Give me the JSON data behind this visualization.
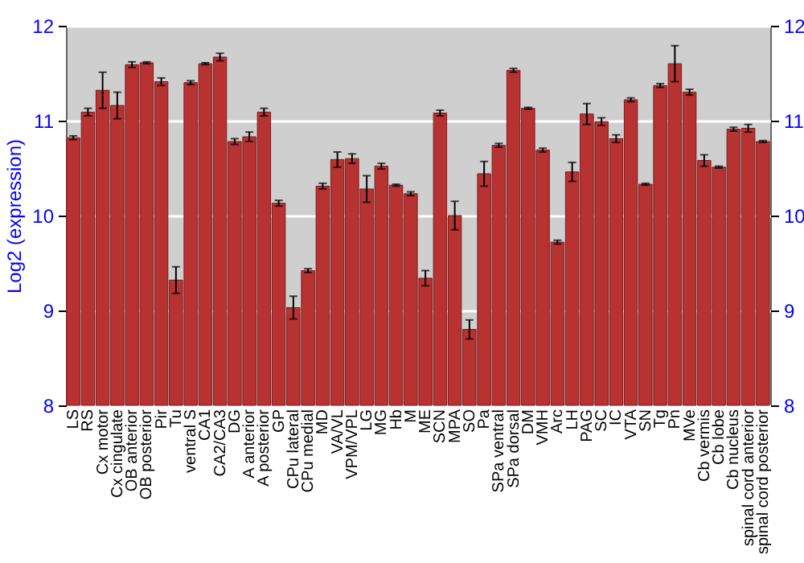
{
  "chart_data": {
    "type": "bar",
    "ylabel": "Log2 (expression)",
    "categories": [
      "LS",
      "RS",
      "Cx motor",
      "Cx cingulate",
      "OB anterior",
      "OB posterior",
      "Pir",
      "Tu",
      "ventral S",
      "CA1",
      "CA2/CA3",
      "DG",
      "A anterior",
      "A posterior",
      "GP",
      "CPu lateral",
      "CPu medial",
      "MD",
      "VA/VL",
      "VPM/VPL",
      "LG",
      "MG",
      "Hb",
      "M",
      "ME",
      "SCN",
      "MPA",
      "SO",
      "Pa",
      "SPa ventral",
      "SPa dorsal",
      "DM",
      "VMH",
      "Arc",
      "LH",
      "PAG",
      "SC",
      "IC",
      "VTA",
      "SN",
      "Tg",
      "Pn",
      "MVe",
      "Cb vermis",
      "Cb lobe",
      "Cb nucleus",
      "spinal cord anterior",
      "spinal cord posterior"
    ],
    "series": [
      {
        "color": "#b83232",
        "values": [
          10.82,
          11.09,
          11.32,
          11.16,
          11.59,
          11.61,
          11.41,
          9.32,
          11.4,
          11.6,
          11.67,
          10.78,
          10.83,
          11.09,
          10.13,
          9.03,
          9.42,
          10.31,
          10.59,
          10.6,
          10.28,
          10.52,
          10.32,
          10.23,
          9.34,
          11.08,
          10.0,
          8.8,
          10.44,
          10.74,
          11.53,
          11.13,
          10.69,
          9.72,
          10.46,
          11.07,
          10.99,
          10.81,
          11.22,
          10.33,
          11.37,
          11.6,
          11.3,
          10.58,
          10.51,
          10.91,
          10.92,
          10.78
        ],
        "errors": [
          0.02,
          0.04,
          0.19,
          0.14,
          0.03,
          0.01,
          0.04,
          0.14,
          0.02,
          0.01,
          0.04,
          0.03,
          0.05,
          0.04,
          0.03,
          0.12,
          0.02,
          0.03,
          0.08,
          0.05,
          0.14,
          0.03,
          0.01,
          0.02,
          0.08,
          0.03,
          0.15,
          0.1,
          0.13,
          0.02,
          0.02,
          0.01,
          0.02,
          0.02,
          0.1,
          0.11,
          0.04,
          0.04,
          0.02,
          0.01,
          0.02,
          0.19,
          0.03,
          0.06,
          0.01,
          0.02,
          0.04,
          0.01
        ]
      }
    ],
    "ylim": [
      8,
      12
    ],
    "yticks": [
      8,
      9,
      10,
      11,
      12
    ],
    "y2lim": [
      8,
      12
    ],
    "y2ticks": [
      8,
      9,
      10,
      11,
      12
    ],
    "grid": true
  }
}
